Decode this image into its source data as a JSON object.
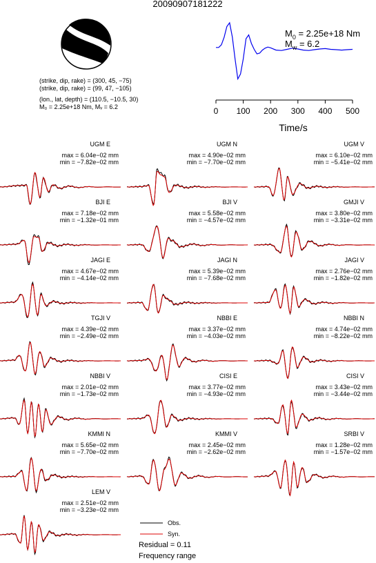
{
  "event_id": "20090907181222",
  "focal_mechanism": {
    "planes": [
      "(strike, dip, rake) = (300, 45, −75)",
      "(strike, dip, rake) = (99, 47, −105)"
    ],
    "location": "(lon., lat, depth) = (110.5, −10.5, 30)",
    "moment_line": "M₀ = 2.25e+18 Nm, Mᵥ = 6.2"
  },
  "stf_panel": {
    "m0_label": "M",
    "m0_sub": "0",
    "m0_value": " = 2.25e+18 Nm",
    "mw_label": "M",
    "mw_sub": "w",
    "mw_value": " = 6.2",
    "xlabel": "Time/s",
    "x_ticks": [
      "0",
      "100",
      "200",
      "300",
      "400",
      "500"
    ],
    "line_color": "#0000ee"
  },
  "legend": {
    "obs_label": "Obs.",
    "syn_label": "Syn.",
    "obs_color": "#000000",
    "syn_color": "#dd0000",
    "residual": "Residual = 0.11",
    "freq": "Frequency range"
  },
  "chart_data": {
    "type": "line",
    "title": "20090907181222",
    "stf": {
      "xlabel": "Time/s",
      "xlim": [
        0,
        500
      ],
      "x": [
        0,
        10,
        20,
        30,
        40,
        50,
        60,
        70,
        80,
        90,
        100,
        110,
        120,
        130,
        140,
        150,
        160,
        170,
        180,
        190,
        200,
        220,
        240,
        260,
        280,
        300,
        320,
        340,
        360,
        380,
        400,
        420,
        440,
        460,
        480,
        500
      ],
      "y": [
        0.35,
        0.35,
        0.42,
        0.62,
        0.9,
        1.0,
        0.62,
        0.05,
        -0.48,
        -0.35,
        0.05,
        0.58,
        0.68,
        0.45,
        0.3,
        0.18,
        0.2,
        0.28,
        0.33,
        0.36,
        0.34,
        0.28,
        0.27,
        0.3,
        0.33,
        0.31,
        0.28,
        0.27,
        0.29,
        0.31,
        0.32,
        0.3,
        0.29,
        0.28,
        0.29,
        0.3
      ]
    },
    "stations": [
      {
        "name": "UGM E",
        "max": "max = 6.04e−02 mm",
        "min": "min = −7.82e−02 mm",
        "w": [
          [
            0.0,
            0.0
          ],
          [
            0.16,
            0.08
          ],
          [
            0.22,
            0.1
          ],
          [
            0.25,
            -0.92
          ],
          [
            0.29,
            0.78
          ],
          [
            0.33,
            -0.55
          ],
          [
            0.36,
            0.5
          ],
          [
            0.4,
            -0.25
          ],
          [
            0.44,
            0.12
          ],
          [
            0.5,
            -0.08
          ]
        ],
        "obs_extra": [
          0.92,
          1.08
        ],
        "phase": 0.4
      },
      {
        "name": "UGM N",
        "max": "max = 4.90e−02 mm",
        "min": "min = −7.70e−02 mm",
        "w": [
          [
            0.0,
            0.0
          ],
          [
            0.12,
            0.02
          ],
          [
            0.18,
            0.08
          ],
          [
            0.22,
            -1.0
          ],
          [
            0.25,
            0.85
          ],
          [
            0.28,
            0.65
          ],
          [
            0.31,
            0.55
          ],
          [
            0.35,
            -0.3
          ],
          [
            0.4,
            0.1
          ],
          [
            0.5,
            -0.04
          ]
        ],
        "obs_extra": [
          1.12,
          0.95
        ],
        "phase": 1.1
      },
      {
        "name": "UGM V",
        "max": "max = 6.10e−02 mm",
        "min": "min = −5.41e−02 mm",
        "w": [
          [
            0.0,
            0.0
          ],
          [
            0.12,
            0.02
          ],
          [
            0.16,
            -0.45
          ],
          [
            0.21,
            1.0
          ],
          [
            0.25,
            -0.7
          ],
          [
            0.28,
            0.55
          ],
          [
            0.32,
            -0.4
          ],
          [
            0.38,
            0.18
          ],
          [
            0.45,
            -0.06
          ]
        ],
        "obs_extra": [
          1.0,
          1.05
        ],
        "phase": 2.3
      },
      {
        "name": "BJI E",
        "max": "max = 7.18e−02 mm",
        "min": "min = −1.32e−01 mm",
        "w": [
          [
            0.0,
            0.0
          ],
          [
            0.14,
            0.04
          ],
          [
            0.2,
            0.25
          ],
          [
            0.24,
            -0.95
          ],
          [
            0.28,
            0.45
          ],
          [
            0.32,
            0.4
          ],
          [
            0.35,
            -0.35
          ],
          [
            0.4,
            0.12
          ],
          [
            0.48,
            -0.05
          ]
        ],
        "obs_extra": [
          1.1,
          1.12
        ],
        "phase": 0.7
      },
      {
        "name": "BJI V",
        "max": "max = 5.58e−02 mm",
        "min": "min = −4.57e−02 mm",
        "w": [
          [
            0.0,
            0.0
          ],
          [
            0.12,
            0.02
          ],
          [
            0.18,
            -0.35
          ],
          [
            0.25,
            1.0
          ],
          [
            0.3,
            -0.7
          ],
          [
            0.34,
            0.35
          ],
          [
            0.38,
            0.22
          ],
          [
            0.44,
            -0.1
          ],
          [
            0.55,
            0.05
          ]
        ],
        "obs_extra": [
          1.0,
          1.0
        ],
        "phase": 1.9
      },
      {
        "name": "GMJI V",
        "max": "max = 3.80e−02 mm",
        "min": "min = −3.31e−02 mm",
        "w": [
          [
            0.0,
            0.0
          ],
          [
            0.14,
            0.02
          ],
          [
            0.22,
            -0.4
          ],
          [
            0.27,
            1.0
          ],
          [
            0.31,
            -0.65
          ],
          [
            0.35,
            0.7
          ],
          [
            0.4,
            -0.25
          ],
          [
            0.46,
            0.2
          ],
          [
            0.55,
            -0.05
          ]
        ],
        "obs_extra": [
          1.05,
          1.0
        ],
        "phase": 2.8
      },
      {
        "name": "JAGI E",
        "max": "max = 4.67e−02 mm",
        "min": "min = −4.14e−02 mm",
        "w": [
          [
            0.0,
            0.0
          ],
          [
            0.12,
            0.04
          ],
          [
            0.18,
            0.45
          ],
          [
            0.23,
            -0.75
          ],
          [
            0.27,
            1.0
          ],
          [
            0.31,
            -0.65
          ],
          [
            0.34,
            0.45
          ],
          [
            0.38,
            -0.15
          ],
          [
            0.44,
            0.08
          ],
          [
            0.52,
            -0.03
          ]
        ],
        "obs_extra": [
          1.05,
          1.1
        ],
        "phase": 3.4
      },
      {
        "name": "JAGI N",
        "max": "max = 5.39e−02 mm",
        "min": "min = −7.68e−02 mm",
        "w": [
          [
            0.0,
            0.0
          ],
          [
            0.12,
            0.02
          ],
          [
            0.17,
            -0.4
          ],
          [
            0.22,
            1.0
          ],
          [
            0.26,
            -0.55
          ],
          [
            0.3,
            0.4
          ],
          [
            0.34,
            0.18
          ],
          [
            0.4,
            -0.08
          ],
          [
            0.5,
            0.03
          ]
        ],
        "obs_extra": [
          1.0,
          1.0
        ],
        "phase": 4.1
      },
      {
        "name": "JAGI V",
        "max": "max = 2.76e−02 mm",
        "min": "min = −1.82e−02 mm",
        "w": [
          [
            0.0,
            0.0
          ],
          [
            0.12,
            0.02
          ],
          [
            0.18,
            0.7
          ],
          [
            0.22,
            -0.3
          ],
          [
            0.26,
            0.95
          ],
          [
            0.3,
            -0.55
          ],
          [
            0.33,
            0.85
          ],
          [
            0.37,
            -0.2
          ],
          [
            0.42,
            0.18
          ],
          [
            0.5,
            -0.05
          ]
        ],
        "obs_extra": [
          1.05,
          1.0
        ],
        "phase": 0.2
      },
      {
        "name": "TGJI V",
        "max": "max = 4.39e−02 mm",
        "min": "min = −2.49e−02 mm",
        "w": [
          [
            0.0,
            0.0
          ],
          [
            0.12,
            0.04
          ],
          [
            0.16,
            0.3
          ],
          [
            0.21,
            -0.55
          ],
          [
            0.25,
            1.0
          ],
          [
            0.29,
            -0.7
          ],
          [
            0.33,
            0.5
          ],
          [
            0.37,
            -0.3
          ],
          [
            0.42,
            0.15
          ],
          [
            0.5,
            -0.04
          ]
        ],
        "obs_extra": [
          1.0,
          1.05
        ],
        "phase": 1.5
      },
      {
        "name": "NBBI E",
        "max": "max = 3.37e−02 mm",
        "min": "min = −4.03e−02 mm",
        "w": [
          [
            0.0,
            0.0
          ],
          [
            0.12,
            0.02
          ],
          [
            0.18,
            0.1
          ],
          [
            0.24,
            -0.55
          ],
          [
            0.29,
            0.3
          ],
          [
            0.33,
            -1.0
          ],
          [
            0.38,
            0.85
          ],
          [
            0.43,
            -0.3
          ],
          [
            0.48,
            0.15
          ],
          [
            0.56,
            -0.05
          ]
        ],
        "obs_extra": [
          1.0,
          1.0
        ],
        "phase": 2.0
      },
      {
        "name": "NBBI N",
        "max": "max = 4.74e−02 mm",
        "min": "min = −8.22e−02 mm",
        "w": [
          [
            0.0,
            0.0
          ],
          [
            0.12,
            0.02
          ],
          [
            0.2,
            -0.15
          ],
          [
            0.24,
            0.55
          ],
          [
            0.28,
            -0.95
          ],
          [
            0.32,
            0.75
          ],
          [
            0.36,
            -0.35
          ],
          [
            0.41,
            0.2
          ],
          [
            0.48,
            -0.06
          ]
        ],
        "obs_extra": [
          1.0,
          1.0
        ],
        "phase": 2.6
      },
      {
        "name": "NBBI V",
        "max": "max = 2.01e−02 mm",
        "min": "min = −1.73e−02 mm",
        "w": [
          [
            0.0,
            0.0
          ],
          [
            0.12,
            0.05
          ],
          [
            0.16,
            -0.3
          ],
          [
            0.2,
            1.0
          ],
          [
            0.23,
            -0.8
          ],
          [
            0.26,
            0.9
          ],
          [
            0.29,
            -0.95
          ],
          [
            0.32,
            0.8
          ],
          [
            0.35,
            -0.7
          ],
          [
            0.38,
            0.5
          ],
          [
            0.42,
            -0.3
          ],
          [
            0.48,
            0.12
          ],
          [
            0.56,
            -0.05
          ]
        ],
        "obs_extra": [
          1.05,
          1.0
        ],
        "phase": 3.1
      },
      {
        "name": "CISI E",
        "max": "max = 3.77e−02 mm",
        "min": "min = −4.93e−02 mm",
        "w": [
          [
            0.0,
            0.0
          ],
          [
            0.12,
            0.02
          ],
          [
            0.18,
            0.2
          ],
          [
            0.23,
            -0.8
          ],
          [
            0.28,
            1.0
          ],
          [
            0.33,
            -0.45
          ],
          [
            0.37,
            0.2
          ],
          [
            0.43,
            -0.08
          ],
          [
            0.52,
            0.03
          ]
        ],
        "obs_extra": [
          1.0,
          1.0
        ],
        "phase": 3.7
      },
      {
        "name": "CISI V",
        "max": "max = 3.43e−02 mm",
        "min": "min = −3.44e−02 mm",
        "w": [
          [
            0.0,
            0.0
          ],
          [
            0.14,
            0.02
          ],
          [
            0.2,
            -0.25
          ],
          [
            0.24,
            0.75
          ],
          [
            0.28,
            -0.8
          ],
          [
            0.31,
            1.0
          ],
          [
            0.35,
            -0.45
          ],
          [
            0.4,
            0.25
          ],
          [
            0.46,
            -0.08
          ]
        ],
        "obs_extra": [
          0.95,
          1.05
        ],
        "phase": 4.4
      },
      {
        "name": "KMMI N",
        "max": "max = 5.65e−02 mm",
        "min": "min = −7.70e−02 mm",
        "w": [
          [
            0.0,
            0.0
          ],
          [
            0.12,
            0.02
          ],
          [
            0.18,
            0.3
          ],
          [
            0.22,
            -0.75
          ],
          [
            0.26,
            1.0
          ],
          [
            0.3,
            -0.75
          ],
          [
            0.34,
            0.4
          ],
          [
            0.38,
            -0.2
          ],
          [
            0.44,
            0.1
          ],
          [
            0.52,
            -0.03
          ]
        ],
        "obs_extra": [
          1.05,
          1.05
        ],
        "phase": 0.9
      },
      {
        "name": "KMMI V",
        "max": "max = 2.45e−02 mm",
        "min": "min = −2.62e−02 mm",
        "w": [
          [
            0.0,
            0.0
          ],
          [
            0.12,
            0.04
          ],
          [
            0.18,
            -0.4
          ],
          [
            0.22,
            0.9
          ],
          [
            0.27,
            -0.75
          ],
          [
            0.31,
            0.4
          ],
          [
            0.35,
            0.95
          ],
          [
            0.4,
            -0.45
          ],
          [
            0.45,
            0.2
          ],
          [
            0.52,
            -0.08
          ]
        ],
        "obs_extra": [
          1.05,
          1.0
        ],
        "phase": 1.7
      },
      {
        "name": "SRBI V",
        "max": "max = 1.28e−02 mm",
        "min": "min = −1.57e−02 mm",
        "w": [
          [
            0.0,
            0.0
          ],
          [
            0.12,
            0.04
          ],
          [
            0.18,
            0.3
          ],
          [
            0.22,
            -0.6
          ],
          [
            0.26,
            0.9
          ],
          [
            0.3,
            -1.0
          ],
          [
            0.33,
            0.8
          ],
          [
            0.36,
            -0.55
          ],
          [
            0.4,
            0.5
          ],
          [
            0.44,
            -0.3
          ],
          [
            0.5,
            0.12
          ],
          [
            0.58,
            -0.05
          ]
        ],
        "obs_extra": [
          1.0,
          1.0
        ],
        "phase": 2.4
      },
      {
        "name": "LEM V",
        "max": "max = 2.51e−02 mm",
        "min": "min = −3.23e−02 mm",
        "w": [
          [
            0.0,
            0.0
          ],
          [
            0.12,
            0.05
          ],
          [
            0.17,
            -0.45
          ],
          [
            0.2,
            1.0
          ],
          [
            0.23,
            -0.8
          ],
          [
            0.26,
            0.7
          ],
          [
            0.29,
            -0.95
          ],
          [
            0.32,
            0.55
          ],
          [
            0.36,
            -0.3
          ],
          [
            0.41,
            0.15
          ],
          [
            0.48,
            -0.05
          ]
        ],
        "obs_extra": [
          1.0,
          1.05
        ],
        "phase": 3.3
      }
    ]
  }
}
